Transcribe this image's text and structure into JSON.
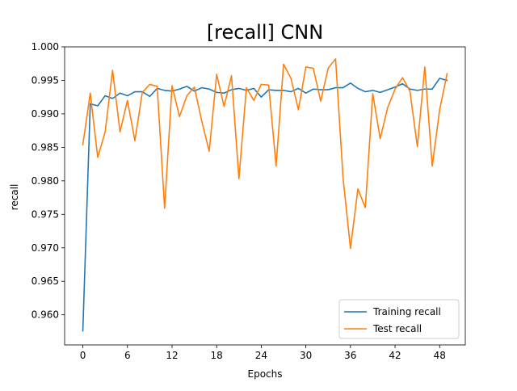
{
  "chart_data": {
    "type": "line",
    "title": "[recall] CNN",
    "xlabel": "Epochs",
    "ylabel": "recall",
    "xlim": [
      -2.45,
      51.45
    ],
    "ylim": [
      0.9555,
      1.0
    ],
    "xticks": [
      0,
      6,
      12,
      18,
      24,
      30,
      36,
      42,
      48
    ],
    "yticks": [
      0.96,
      0.965,
      0.97,
      0.975,
      0.98,
      0.985,
      0.99,
      0.995,
      1.0
    ],
    "ytick_labels": [
      "0.960",
      "0.965",
      "0.970",
      "0.975",
      "0.980",
      "0.985",
      "0.990",
      "0.995",
      "1.000"
    ],
    "grid": false,
    "legend_position": "lower right",
    "x": [
      0,
      1,
      2,
      3,
      4,
      5,
      6,
      7,
      8,
      9,
      10,
      11,
      12,
      13,
      14,
      15,
      16,
      17,
      18,
      19,
      20,
      21,
      22,
      23,
      24,
      25,
      26,
      27,
      28,
      29,
      30,
      31,
      32,
      33,
      34,
      35,
      36,
      37,
      38,
      39,
      40,
      41,
      42,
      43,
      44,
      45,
      46,
      47,
      48,
      49
    ],
    "series": [
      {
        "name": "Training recall",
        "color": "#1f77b4",
        "values": [
          0.9576,
          0.9915,
          0.9912,
          0.9927,
          0.9923,
          0.9931,
          0.9927,
          0.9933,
          0.9933,
          0.9926,
          0.9938,
          0.9935,
          0.9934,
          0.9937,
          0.9941,
          0.9934,
          0.9939,
          0.9937,
          0.9932,
          0.9931,
          0.9936,
          0.9938,
          0.9935,
          0.9938,
          0.9925,
          0.9936,
          0.9935,
          0.9935,
          0.9933,
          0.9938,
          0.9931,
          0.9937,
          0.9936,
          0.9936,
          0.9939,
          0.9939,
          0.9946,
          0.9938,
          0.9933,
          0.9935,
          0.9932,
          0.9936,
          0.994,
          0.9945,
          0.9937,
          0.9935,
          0.9937,
          0.9937,
          0.9953,
          0.995
        ]
      },
      {
        "name": "Test recall",
        "color": "#ff7f0e",
        "values": [
          0.9854,
          0.9931,
          0.9835,
          0.9873,
          0.9965,
          0.9873,
          0.992,
          0.986,
          0.9932,
          0.9944,
          0.9941,
          0.9759,
          0.9942,
          0.9896,
          0.9927,
          0.994,
          0.9889,
          0.9844,
          0.9959,
          0.9911,
          0.9957,
          0.9803,
          0.9939,
          0.992,
          0.9944,
          0.9943,
          0.9822,
          0.9974,
          0.9953,
          0.9906,
          0.997,
          0.9968,
          0.9919,
          0.9968,
          0.9982,
          0.9805,
          0.9699,
          0.9788,
          0.976,
          0.993,
          0.9863,
          0.9909,
          0.9937,
          0.9954,
          0.9934,
          0.9851,
          0.997,
          0.9822,
          0.9906,
          0.996
        ]
      }
    ]
  }
}
